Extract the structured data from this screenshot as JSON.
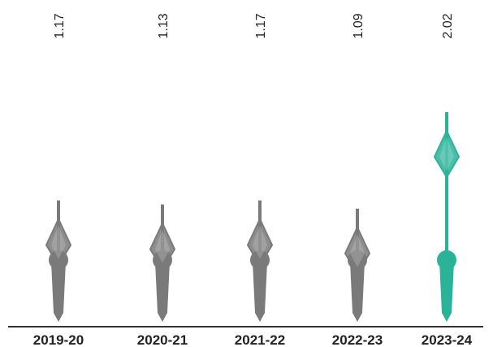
{
  "chart_data": {
    "type": "pin",
    "categories": [
      "2019-20",
      "2020-21",
      "2021-22",
      "2022-23",
      "2023-24"
    ],
    "values": [
      1.17,
      1.13,
      1.17,
      1.09,
      2.02
    ],
    "colors": [
      "#7a7a7a",
      "#7a7a7a",
      "#7a7a7a",
      "#7a7a7a",
      "#2bb39a"
    ]
  }
}
